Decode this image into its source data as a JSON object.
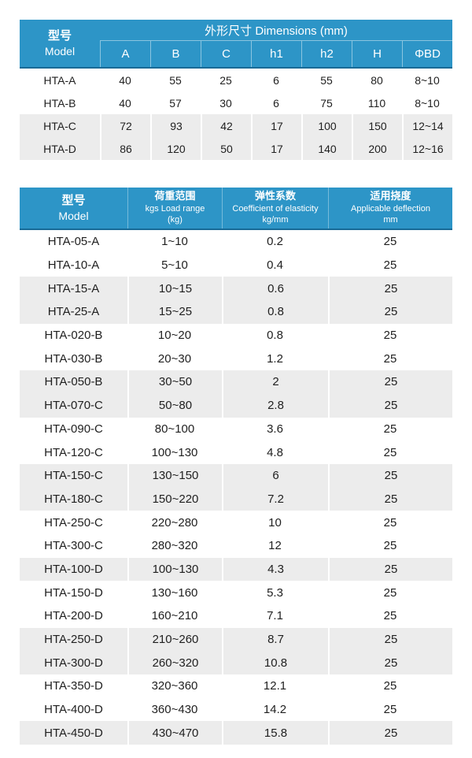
{
  "colors": {
    "header_blue": "#2d95c7",
    "header_bottom_border": "#196a96",
    "header_divider": "rgba(255,255,255,0.4)",
    "row_shade_gray": "#ececec",
    "body_text": "#1f1f1f",
    "header_text": "#ffffff"
  },
  "table1": {
    "header": {
      "model_cn": "型号",
      "model_en": "Model",
      "dims_title": "外形尺寸 Dimensions (mm)",
      "columns": [
        "A",
        "B",
        "C",
        "h1",
        "h2",
        "H",
        "ΦBD"
      ]
    },
    "rows": [
      {
        "model": "HTA-A",
        "values": [
          "40",
          "55",
          "25",
          "6",
          "55",
          "80",
          "8~10"
        ],
        "shaded": false
      },
      {
        "model": "HTA-B",
        "values": [
          "40",
          "57",
          "30",
          "6",
          "75",
          "110",
          "8~10"
        ],
        "shaded": false
      },
      {
        "model": "HTA-C",
        "values": [
          "72",
          "93",
          "42",
          "17",
          "100",
          "150",
          "12~14"
        ],
        "shaded": true
      },
      {
        "model": "HTA-D",
        "values": [
          "86",
          "120",
          "50",
          "17",
          "140",
          "200",
          "12~16"
        ],
        "shaded": true
      }
    ]
  },
  "table2": {
    "header": {
      "model": {
        "cn": "型号",
        "en": "Model"
      },
      "load": {
        "cn": "荷重范围",
        "en": "kgs Load range",
        "unit": "(kg)"
      },
      "coefficient": {
        "cn": "弹性系数",
        "en": "Coefficient of elasticity",
        "unit": "kg/mm"
      },
      "deflection": {
        "cn": "适用挠度",
        "en": "Applicable deflection",
        "unit": "mm"
      }
    },
    "rows": [
      {
        "model": "HTA-05-A",
        "load": "1~10",
        "coefficient": "0.2",
        "deflection": "25",
        "shaded": false
      },
      {
        "model": "HTA-10-A",
        "load": "5~10",
        "coefficient": "0.4",
        "deflection": "25",
        "shaded": false
      },
      {
        "model": "HTA-15-A",
        "load": "10~15",
        "coefficient": "0.6",
        "deflection": "25",
        "shaded": true
      },
      {
        "model": "HTA-25-A",
        "load": "15~25",
        "coefficient": "0.8",
        "deflection": "25",
        "shaded": true
      },
      {
        "model": "HTA-020-B",
        "load": "10~20",
        "coefficient": "0.8",
        "deflection": "25",
        "shaded": false
      },
      {
        "model": "HTA-030-B",
        "load": "20~30",
        "coefficient": "1.2",
        "deflection": "25",
        "shaded": false
      },
      {
        "model": "HTA-050-B",
        "load": "30~50",
        "coefficient": "2",
        "deflection": "25",
        "shaded": true
      },
      {
        "model": "HTA-070-C",
        "load": "50~80",
        "coefficient": "2.8",
        "deflection": "25",
        "shaded": true
      },
      {
        "model": "HTA-090-C",
        "load": "80~100",
        "coefficient": "3.6",
        "deflection": "25",
        "shaded": false
      },
      {
        "model": "HTA-120-C",
        "load": "100~130",
        "coefficient": "4.8",
        "deflection": "25",
        "shaded": false
      },
      {
        "model": "HTA-150-C",
        "load": "130~150",
        "coefficient": "6",
        "deflection": "25",
        "shaded": true
      },
      {
        "model": "HTA-180-C",
        "load": "150~220",
        "coefficient": "7.2",
        "deflection": "25",
        "shaded": true
      },
      {
        "model": "HTA-250-C",
        "load": "220~280",
        "coefficient": "10",
        "deflection": "25",
        "shaded": false
      },
      {
        "model": "HTA-300-C",
        "load": "280~320",
        "coefficient": "12",
        "deflection": "25",
        "shaded": false
      },
      {
        "model": "HTA-100-D",
        "load": "100~130",
        "coefficient": "4.3",
        "deflection": "25",
        "shaded": true
      },
      {
        "model": "HTA-150-D",
        "load": "130~160",
        "coefficient": "5.3",
        "deflection": "25",
        "shaded": false
      },
      {
        "model": "HTA-200-D",
        "load": "160~210",
        "coefficient": "7.1",
        "deflection": "25",
        "shaded": false
      },
      {
        "model": "HTA-250-D",
        "load": "210~260",
        "coefficient": "8.7",
        "deflection": "25",
        "shaded": true
      },
      {
        "model": "HTA-300-D",
        "load": "260~320",
        "coefficient": "10.8",
        "deflection": "25",
        "shaded": true
      },
      {
        "model": "HTA-350-D",
        "load": "320~360",
        "coefficient": "12.1",
        "deflection": "25",
        "shaded": false
      },
      {
        "model": "HTA-400-D",
        "load": "360~430",
        "coefficient": "14.2",
        "deflection": "25",
        "shaded": false
      },
      {
        "model": "HTA-450-D",
        "load": "430~470",
        "coefficient": "15.8",
        "deflection": "25",
        "shaded": true
      }
    ]
  }
}
